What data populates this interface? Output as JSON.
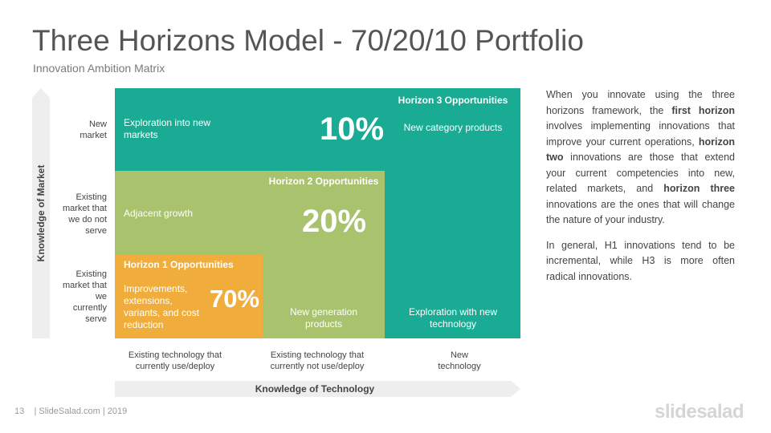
{
  "title": "Three Horizons Model - 70/20/10 Portfolio",
  "subtitle": "Innovation Ambition Matrix",
  "axes": {
    "y_title": "Knowledge of Market",
    "x_title": "Knowledge of Technology"
  },
  "y_labels": [
    "New\nmarket",
    "Existing\nmarket that\nwe do not\nserve",
    "Existing\nmarket that\nwe\ncurrently\nserve"
  ],
  "x_labels": [
    "Existing technology that\ncurrently use/deploy",
    "Existing technology that\ncurrently not use/deploy",
    "New\ntechnology"
  ],
  "horizons": {
    "h3": {
      "heading": "Horizon 3 Opportunities",
      "percent": "10%",
      "color": "#19ab93",
      "cell_top_left": "Exploration into new\nmarkets",
      "cell_top_right": "New category products",
      "cell_bottom_right": "Exploration with new\ntechnology"
    },
    "h2": {
      "heading": "Horizon 2 Opportunities",
      "percent": "20%",
      "color": "#a8c26d",
      "cell_mid_left": "Adjacent growth",
      "cell_bottom_mid": "New generation\nproducts"
    },
    "h1": {
      "heading": "Horizon 1 Opportunities",
      "percent": "70%",
      "color": "#f1ad3c",
      "cell_bottom_left": "Improvements,\nextensions,\nvariants, and cost\nreduction"
    }
  },
  "description": {
    "p1_a": "When you innovate using the three horizons framework, the ",
    "p1_b": "first horizon",
    "p1_c": " involves implementing innovations that improve your current operations, ",
    "p1_d": "horizon two",
    "p1_e": " innovations are those that extend your current competencies into new, related markets, and ",
    "p1_f": "horizon three",
    "p1_g": " innovations are the ones that will change the nature of your industry.",
    "p2": "In general, H1 innovations tend to be incremental, while H3 is more often radical innovations."
  },
  "footer": {
    "page_number": "13",
    "text": "| SlideSalad.com | 2019",
    "brand": "slidesalad"
  },
  "colors": {
    "arrow": "#eeeeee",
    "text": "#444444",
    "title": "#555555"
  }
}
